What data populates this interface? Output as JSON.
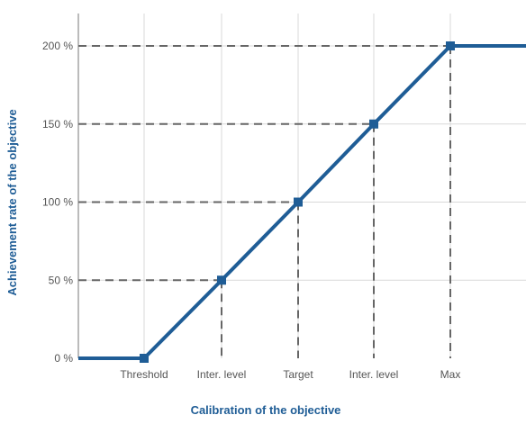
{
  "chart_data": {
    "type": "line",
    "title": "",
    "xlabel": "Calibration of the objective",
    "ylabel": "Achievement rate of the objective",
    "categories": [
      "Threshold",
      "Inter. level",
      "Target",
      "Inter. level",
      "Max"
    ],
    "y_ticks": [
      "0 %",
      "50 %",
      "100 %",
      "150 %",
      "200 %"
    ],
    "ylim": [
      0,
      200
    ],
    "grid": true,
    "legend": "none",
    "series": [
      {
        "points": [
          {
            "x": "left edge",
            "y": 0
          },
          {
            "x": "Threshold",
            "y": 0
          },
          {
            "x": "Inter. level",
            "y": 50
          },
          {
            "x": "Target",
            "y": 100
          },
          {
            "x": "Inter. level",
            "y": 150
          },
          {
            "x": "Max",
            "y": 200
          },
          {
            "x": "right edge",
            "y": 200
          }
        ]
      }
    ],
    "colors": {
      "line": "#1f5d96",
      "axis_title": "#1f5d96",
      "grid": "#d9d9d9",
      "guide": "#666666",
      "axis": "#777777"
    }
  }
}
